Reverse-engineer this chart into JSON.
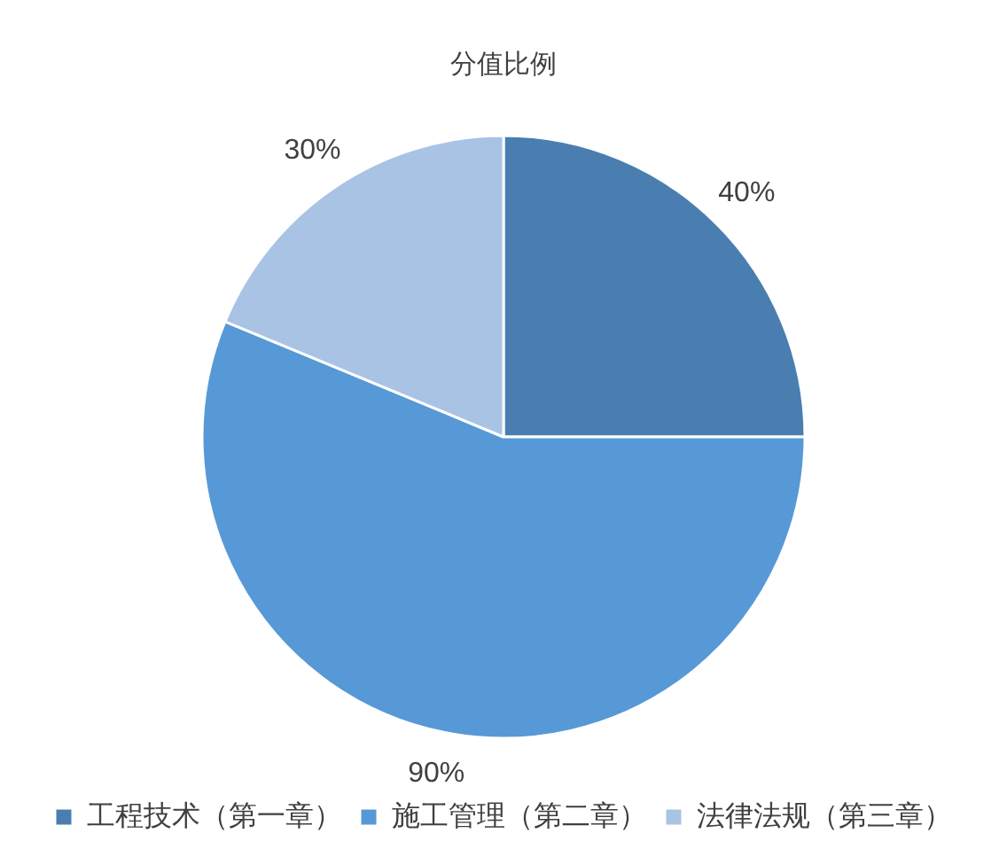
{
  "chart_data": {
    "type": "pie",
    "title": "分值比例",
    "categories": [
      "工程技术（第一章）",
      "施工管理（第二章）",
      "法律法规（第三章）"
    ],
    "values": [
      40,
      90,
      30
    ],
    "colors": [
      "#4a7eb0",
      "#5799d6",
      "#a9c3e5"
    ],
    "value_labels": [
      "40%",
      "90%",
      "30%"
    ],
    "legend": "bottom"
  }
}
